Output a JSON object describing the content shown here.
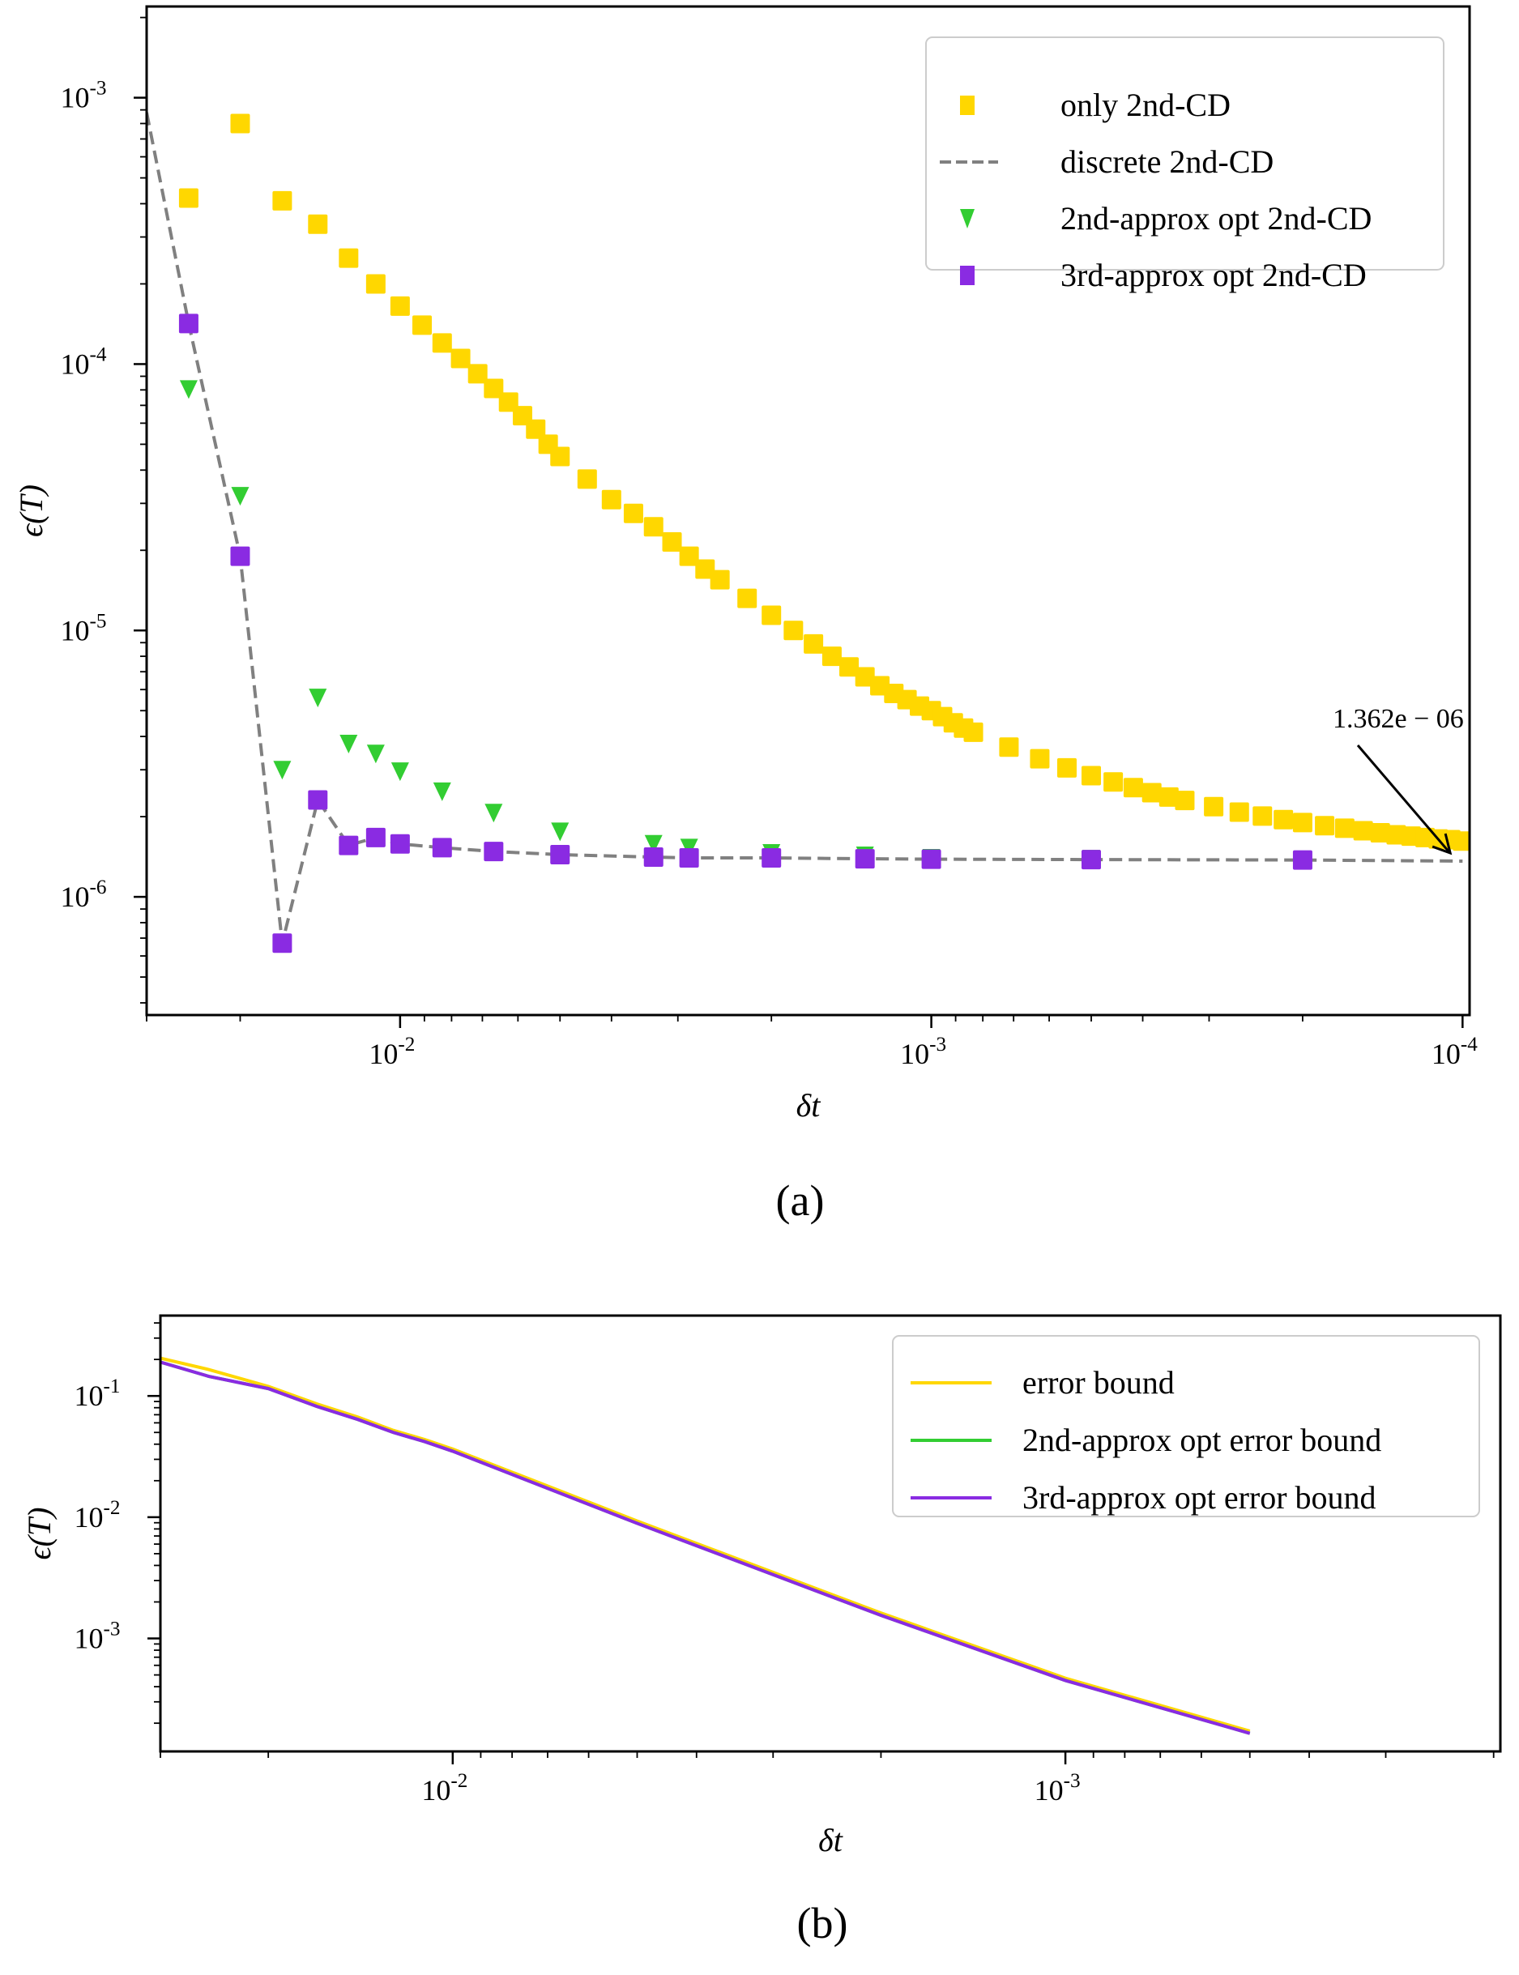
{
  "chart_data": [
    {
      "type": "scatter",
      "panel_label": "(a)",
      "xlabel": "δt",
      "ylabel": "ϵ(T)",
      "xscale": "log",
      "yscale": "log",
      "x_reversed": true,
      "xlim": [
        0.03,
        9.7e-05
      ],
      "ylim": [
        3.6e-07,
        0.0022
      ],
      "grid": false,
      "legend_placement": "top-right",
      "xticks": [
        {
          "value": 0.01,
          "base": "10",
          "exp": "-2"
        },
        {
          "value": 0.001,
          "base": "10",
          "exp": "-3"
        },
        {
          "value": 0.0001,
          "base": "10",
          "exp": "-4"
        }
      ],
      "yticks": [
        {
          "value": 0.001,
          "base": "10",
          "exp": "-3"
        },
        {
          "value": 0.0001,
          "base": "10",
          "exp": "-4"
        },
        {
          "value": 1e-05,
          "base": "10",
          "exp": "-5"
        },
        {
          "value": 1e-06,
          "base": "10",
          "exp": "-6"
        }
      ],
      "series": [
        {
          "name": "only 2nd-CD",
          "marker": "square",
          "color": "#FFD700",
          "x": [
            0.025,
            0.02,
            0.016667,
            0.014286,
            0.0125,
            0.011111,
            0.01,
            0.0090909,
            0.0083333,
            0.0076923,
            0.0071429,
            0.0066667,
            0.00625,
            0.0058824,
            0.0055556,
            0.0052632,
            0.005,
            0.0044444,
            0.004,
            0.0036364,
            0.0033333,
            0.0030769,
            0.0028571,
            0.0026667,
            0.0025,
            0.0022222,
            0.002,
            0.0018182,
            0.0016667,
            0.0015385,
            0.0014286,
            0.0013333,
            0.00125,
            0.0011765,
            0.0011111,
            0.0010526,
            0.001,
            0.00095238,
            0.00090909,
            0.00086957,
            0.00083333,
            0.00071429,
            0.000625,
            0.00055556,
            0.0005,
            0.00045455,
            0.00041667,
            0.00038462,
            0.00035714,
            0.00033333,
            0.00029412,
            0.00026316,
            0.0002381,
            0.00021739,
            0.0002,
            0.00018182,
            0.00016667,
            0.00015385,
            0.00014286,
            0.00013333,
            0.000125,
            0.00011765,
            0.00011111,
            0.00010526,
            0.0001
          ],
          "y": [
            0.00042,
            0.0008,
            0.00041,
            0.000335,
            0.00025,
            0.0002,
            0.000165,
            0.00014,
            0.00012,
            0.000105,
            9.2e-05,
            8.1e-05,
            7.2e-05,
            6.4e-05,
            5.7e-05,
            5e-05,
            4.5e-05,
            3.7e-05,
            3.1e-05,
            2.75e-05,
            2.45e-05,
            2.15e-05,
            1.9e-05,
            1.7e-05,
            1.55e-05,
            1.32e-05,
            1.14e-05,
            1e-05,
            8.9e-06,
            8e-06,
            7.3e-06,
            6.7e-06,
            6.2e-06,
            5.8e-06,
            5.5e-06,
            5.2e-06,
            5e-06,
            4.75e-06,
            4.5e-06,
            4.3e-06,
            4.15e-06,
            3.65e-06,
            3.3e-06,
            3.05e-06,
            2.85e-06,
            2.7e-06,
            2.57e-06,
            2.46e-06,
            2.37e-06,
            2.3e-06,
            2.18e-06,
            2.08e-06,
            2.01e-06,
            1.95e-06,
            1.9e-06,
            1.85e-06,
            1.81e-06,
            1.77e-06,
            1.74e-06,
            1.71e-06,
            1.69e-06,
            1.67e-06,
            1.65e-06,
            1.64e-06,
            1.62e-06
          ]
        },
        {
          "name": "discrete 2nd-CD",
          "marker": "dashed-line",
          "color": "#808080",
          "x": [
            0.03,
            0.025,
            0.02,
            0.016667,
            0.014286,
            0.0125,
            0.011111,
            0.01,
            0.0083333,
            0.0066667,
            0.005,
            0.0033333,
            0.0028571,
            0.002,
            0.0013333,
            0.001,
            0.0005,
            0.0002,
            0.0001
          ],
          "y": [
            0.00088,
            0.000142,
            1.9e-05,
            6.7e-07,
            2.31e-06,
            1.56e-06,
            1.67e-06,
            1.58e-06,
            1.53e-06,
            1.48e-06,
            1.44e-06,
            1.41e-06,
            1.4e-06,
            1.4e-06,
            1.39e-06,
            1.385e-06,
            1.38e-06,
            1.375e-06,
            1.362e-06
          ]
        },
        {
          "name": "2nd-approx opt 2nd-CD",
          "marker": "triangle-down",
          "color": "#32CD32",
          "x": [
            0.025,
            0.02,
            0.016667,
            0.014286,
            0.0125,
            0.011111,
            0.01,
            0.0083333,
            0.0066667,
            0.005,
            0.0033333,
            0.0028571,
            0.002,
            0.0013333,
            0.001,
            0.0005,
            0.0002
          ],
          "y": [
            8.05e-05,
            3.2e-05,
            3e-06,
            5.6e-06,
            3.76e-06,
            3.45e-06,
            2.96e-06,
            2.49e-06,
            2.07e-06,
            1.76e-06,
            1.58e-06,
            1.53e-06,
            1.46e-06,
            1.43e-06,
            1.4e-06,
            1.39e-06,
            1.38e-06
          ]
        },
        {
          "name": "3rd-approx opt 2nd-CD",
          "marker": "square",
          "color": "#8A2BE2",
          "x": [
            0.025,
            0.02,
            0.016667,
            0.014286,
            0.0125,
            0.011111,
            0.01,
            0.0083333,
            0.0066667,
            0.005,
            0.0033333,
            0.0028571,
            0.002,
            0.0013333,
            0.001,
            0.0005,
            0.0002
          ],
          "y": [
            0.000142,
            1.9e-05,
            6.7e-07,
            2.31e-06,
            1.56e-06,
            1.67e-06,
            1.58e-06,
            1.53e-06,
            1.48e-06,
            1.44e-06,
            1.41e-06,
            1.4e-06,
            1.4e-06,
            1.39e-06,
            1.385e-06,
            1.38e-06,
            1.375e-06
          ]
        }
      ],
      "annotation": {
        "text": "1.362e − 06",
        "x": 0.000104,
        "y": 1.4e-06
      }
    },
    {
      "type": "line",
      "panel_label": "(b)",
      "xlabel": "δt",
      "ylabel": "ϵ(T)",
      "xscale": "log",
      "yscale": "log",
      "x_reversed": true,
      "xlim": [
        0.03,
        0.000195
      ],
      "ylim": [
        0.000117,
        0.46
      ],
      "grid": false,
      "legend_placement": "top-right",
      "xticks": [
        {
          "value": 0.01,
          "base": "10",
          "exp": "-2"
        },
        {
          "value": 0.001,
          "base": "10",
          "exp": "-3"
        }
      ],
      "yticks": [
        {
          "value": 0.1,
          "base": "10",
          "exp": "-1"
        },
        {
          "value": 0.01,
          "base": "10",
          "exp": "-2"
        },
        {
          "value": 0.001,
          "base": "10",
          "exp": "-3"
        }
      ],
      "series": [
        {
          "name": "error bound",
          "color": "#FFD700",
          "x": [
            0.03,
            0.025,
            0.02,
            0.016667,
            0.014286,
            0.0125,
            0.011111,
            0.01,
            0.005,
            0.002,
            0.001,
            0.0005
          ],
          "y": [
            0.205,
            0.165,
            0.12,
            0.086,
            0.067,
            0.052,
            0.0437,
            0.0365,
            0.0093,
            0.00162,
            0.00047,
            0.000172
          ]
        },
        {
          "name": "2nd-approx opt error bound",
          "color": "#32CD32",
          "x": [
            0.03,
            0.025,
            0.02,
            0.016667,
            0.014286,
            0.0125,
            0.011111,
            0.01,
            0.005,
            0.002,
            0.001,
            0.0005
          ],
          "y": [
            0.19,
            0.145,
            0.115,
            0.082,
            0.064,
            0.05,
            0.042,
            0.035,
            0.0089,
            0.00155,
            0.00045,
            0.000165
          ]
        },
        {
          "name": "3rd-approx opt error bound",
          "color": "#8A2BE2",
          "x": [
            0.03,
            0.025,
            0.02,
            0.016667,
            0.014286,
            0.0125,
            0.011111,
            0.01,
            0.005,
            0.002,
            0.001,
            0.0005
          ],
          "y": [
            0.19,
            0.145,
            0.115,
            0.082,
            0.064,
            0.05,
            0.042,
            0.035,
            0.0089,
            0.00155,
            0.00045,
            0.000165
          ]
        }
      ]
    }
  ]
}
